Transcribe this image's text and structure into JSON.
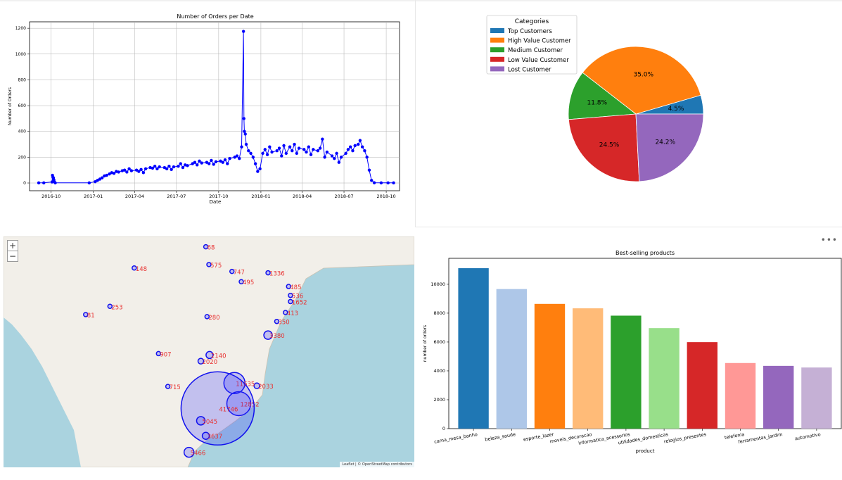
{
  "chart_data": [
    {
      "type": "line",
      "title": "Number of Orders per Date",
      "xlabel": "Date",
      "ylabel": "Number of Orders",
      "ylim": [
        -60,
        1250
      ],
      "xlim": [
        "2016-08-15",
        "2018-10-30"
      ],
      "grid": true,
      "color": "#0000ff",
      "y_ticks": [
        0,
        200,
        400,
        600,
        800,
        1000,
        1200
      ],
      "x_ticks": [
        "2016-10",
        "2017-01",
        "2017-04",
        "2017-07",
        "2017-10",
        "2018-01",
        "2018-04",
        "2018-07",
        "2018-10"
      ],
      "x_tick_dates": [
        "2016-10-01",
        "2017-01-01",
        "2017-04-01",
        "2017-07-01",
        "2017-10-01",
        "2018-01-01",
        "2018-04-01",
        "2018-07-01",
        "2018-10-01"
      ],
      "points": [
        [
          "2016-09-04",
          1
        ],
        [
          "2016-09-15",
          1
        ],
        [
          "2016-10-03",
          8
        ],
        [
          "2016-10-04",
          60
        ],
        [
          "2016-10-05",
          45
        ],
        [
          "2016-10-06",
          40
        ],
        [
          "2016-10-07",
          25
        ],
        [
          "2016-10-08",
          10
        ],
        [
          "2016-10-10",
          1
        ],
        [
          "2016-12-23",
          1
        ],
        [
          "2017-01-05",
          10
        ],
        [
          "2017-01-10",
          20
        ],
        [
          "2017-01-15",
          30
        ],
        [
          "2017-01-20",
          40
        ],
        [
          "2017-01-25",
          55
        ],
        [
          "2017-01-30",
          60
        ],
        [
          "2017-02-05",
          70
        ],
        [
          "2017-02-10",
          80
        ],
        [
          "2017-02-15",
          75
        ],
        [
          "2017-02-20",
          90
        ],
        [
          "2017-02-25",
          85
        ],
        [
          "2017-03-05",
          95
        ],
        [
          "2017-03-10",
          100
        ],
        [
          "2017-03-15",
          85
        ],
        [
          "2017-03-20",
          110
        ],
        [
          "2017-03-25",
          95
        ],
        [
          "2017-04-05",
          100
        ],
        [
          "2017-04-10",
          90
        ],
        [
          "2017-04-15",
          105
        ],
        [
          "2017-04-20",
          80
        ],
        [
          "2017-04-25",
          110
        ],
        [
          "2017-05-05",
          120
        ],
        [
          "2017-05-10",
          115
        ],
        [
          "2017-05-15",
          130
        ],
        [
          "2017-05-20",
          110
        ],
        [
          "2017-05-25",
          125
        ],
        [
          "2017-06-05",
          120
        ],
        [
          "2017-06-10",
          110
        ],
        [
          "2017-06-15",
          130
        ],
        [
          "2017-06-20",
          105
        ],
        [
          "2017-06-25",
          125
        ],
        [
          "2017-07-05",
          130
        ],
        [
          "2017-07-10",
          150
        ],
        [
          "2017-07-15",
          120
        ],
        [
          "2017-07-20",
          140
        ],
        [
          "2017-07-25",
          135
        ],
        [
          "2017-08-05",
          150
        ],
        [
          "2017-08-10",
          160
        ],
        [
          "2017-08-15",
          140
        ],
        [
          "2017-08-20",
          170
        ],
        [
          "2017-08-25",
          155
        ],
        [
          "2017-09-05",
          160
        ],
        [
          "2017-09-10",
          150
        ],
        [
          "2017-09-15",
          175
        ],
        [
          "2017-09-20",
          145
        ],
        [
          "2017-09-25",
          165
        ],
        [
          "2017-10-05",
          170
        ],
        [
          "2017-10-10",
          160
        ],
        [
          "2017-10-15",
          180
        ],
        [
          "2017-10-20",
          150
        ],
        [
          "2017-10-25",
          190
        ],
        [
          "2017-11-05",
          200
        ],
        [
          "2017-11-10",
          210
        ],
        [
          "2017-11-15",
          190
        ],
        [
          "2017-11-20",
          280
        ],
        [
          "2017-11-24",
          1176
        ],
        [
          "2017-11-25",
          500
        ],
        [
          "2017-11-26",
          400
        ],
        [
          "2017-11-28",
          380
        ],
        [
          "2017-11-30",
          300
        ],
        [
          "2017-12-05",
          250
        ],
        [
          "2017-12-10",
          230
        ],
        [
          "2017-12-15",
          200
        ],
        [
          "2017-12-20",
          150
        ],
        [
          "2017-12-25",
          90
        ],
        [
          "2017-12-30",
          110
        ],
        [
          "2018-01-05",
          230
        ],
        [
          "2018-01-10",
          260
        ],
        [
          "2018-01-15",
          220
        ],
        [
          "2018-01-20",
          280
        ],
        [
          "2018-01-25",
          240
        ],
        [
          "2018-02-05",
          250
        ],
        [
          "2018-02-10",
          270
        ],
        [
          "2018-02-15",
          210
        ],
        [
          "2018-02-20",
          290
        ],
        [
          "2018-02-25",
          230
        ],
        [
          "2018-03-05",
          280
        ],
        [
          "2018-03-10",
          250
        ],
        [
          "2018-03-15",
          300
        ],
        [
          "2018-03-20",
          230
        ],
        [
          "2018-03-25",
          270
        ],
        [
          "2018-04-05",
          260
        ],
        [
          "2018-04-10",
          240
        ],
        [
          "2018-04-15",
          280
        ],
        [
          "2018-04-20",
          220
        ],
        [
          "2018-04-25",
          260
        ],
        [
          "2018-05-05",
          250
        ],
        [
          "2018-05-10",
          270
        ],
        [
          "2018-05-15",
          340
        ],
        [
          "2018-05-20",
          200
        ],
        [
          "2018-05-25",
          240
        ],
        [
          "2018-06-05",
          210
        ],
        [
          "2018-06-10",
          190
        ],
        [
          "2018-06-15",
          230
        ],
        [
          "2018-06-20",
          160
        ],
        [
          "2018-06-25",
          200
        ],
        [
          "2018-07-05",
          230
        ],
        [
          "2018-07-10",
          260
        ],
        [
          "2018-07-15",
          280
        ],
        [
          "2018-07-20",
          250
        ],
        [
          "2018-07-25",
          290
        ],
        [
          "2018-08-01",
          300
        ],
        [
          "2018-08-05",
          330
        ],
        [
          "2018-08-10",
          280
        ],
        [
          "2018-08-15",
          250
        ],
        [
          "2018-08-20",
          200
        ],
        [
          "2018-08-25",
          100
        ],
        [
          "2018-08-30",
          20
        ],
        [
          "2018-09-05",
          2
        ],
        [
          "2018-09-20",
          1
        ],
        [
          "2018-10-05",
          1
        ],
        [
          "2018-10-17",
          1
        ]
      ]
    },
    {
      "type": "pie",
      "legend_title": "Categories",
      "legend_position": "top-left",
      "slices": [
        {
          "label": "Top Customers",
          "value": 4.5,
          "text": "4.5%",
          "color": "#1f77b4"
        },
        {
          "label": "High Value Customer",
          "value": 35.0,
          "text": "35.0%",
          "color": "#ff7f0e"
        },
        {
          "label": "Medium Customer",
          "value": 11.8,
          "text": "11.8%",
          "color": "#2ca02c"
        },
        {
          "label": "Low Value Customer",
          "value": 24.5,
          "text": "24.5%",
          "color": "#d62728"
        },
        {
          "label": "Lost Customer",
          "value": 24.2,
          "text": "24.2%",
          "color": "#9467bd"
        }
      ]
    },
    {
      "type": "bar",
      "title": "Best-selling products",
      "xlabel": "product",
      "ylabel": "number of orders",
      "ylim": [
        0,
        11800
      ],
      "y_ticks": [
        0,
        2000,
        4000,
        6000,
        8000,
        10000
      ],
      "categories": [
        "cama_mesa_banho",
        "beleza_saude",
        "esporte_lazer",
        "moveis_decoracao",
        "informatica_acessorios",
        "utilidades_domesticas",
        "relogios_presentes",
        "telefonia",
        "ferramentas_jardim",
        "automotivo"
      ],
      "values": [
        11115,
        9670,
        8641,
        8334,
        7827,
        6964,
        5991,
        4545,
        4347,
        4235
      ],
      "colors": [
        "#1f77b4",
        "#aec7e8",
        "#ff7f0e",
        "#ffbb78",
        "#2ca02c",
        "#98df8a",
        "#d62728",
        "#ff9896",
        "#9467bd",
        "#c5b0d5"
      ]
    }
  ],
  "map": {
    "zoom_in_label": "+",
    "zoom_out_label": "−",
    "attribution": "Leaflet | © OpenStreetMap contributors",
    "markers": [
      {
        "label": "68",
        "lon": -48.5,
        "lat": 0.0,
        "r": 3
      },
      {
        "label": "148",
        "lon": -60.0,
        "lat": -3.1,
        "r": 3
      },
      {
        "label": "575",
        "lon": -48.0,
        "lat": -2.6,
        "r": 3
      },
      {
        "label": "747",
        "lon": -44.3,
        "lat": -3.6,
        "r": 3
      },
      {
        "label": "1336",
        "lon": -38.5,
        "lat": -3.8,
        "r": 3
      },
      {
        "label": "495",
        "lon": -42.8,
        "lat": -5.1,
        "r": 3
      },
      {
        "label": "485",
        "lon": -35.2,
        "lat": -5.8,
        "r": 3
      },
      {
        "label": "536",
        "lon": -34.9,
        "lat": -7.1,
        "r": 3
      },
      {
        "label": "1652",
        "lon": -34.9,
        "lat": -8.0,
        "r": 3
      },
      {
        "label": "413",
        "lon": -35.7,
        "lat": -9.6,
        "r": 3
      },
      {
        "label": "350",
        "lon": -37.1,
        "lat": -10.9,
        "r": 3
      },
      {
        "label": "3380",
        "lon": -38.5,
        "lat": -12.9,
        "r": 6
      },
      {
        "label": "81",
        "lon": -67.8,
        "lat": -9.9,
        "r": 3
      },
      {
        "label": "253",
        "lon": -63.9,
        "lat": -8.7,
        "r": 3
      },
      {
        "label": "280",
        "lon": -48.3,
        "lat": -10.2,
        "r": 3
      },
      {
        "label": "907",
        "lon": -56.1,
        "lat": -15.6,
        "r": 3
      },
      {
        "label": "2140",
        "lon": -47.9,
        "lat": -15.8,
        "r": 5
      },
      {
        "label": "2020",
        "lon": -49.3,
        "lat": -16.7,
        "r": 4
      },
      {
        "label": "715",
        "lon": -54.6,
        "lat": -20.4,
        "r": 3
      },
      {
        "label": "2033",
        "lon": -40.3,
        "lat": -20.3,
        "r": 4
      },
      {
        "label": "11635",
        "lon": -43.9,
        "lat": -19.9,
        "r": 15
      },
      {
        "label": "12852",
        "lon": -43.2,
        "lat": -22.9,
        "r": 17
      },
      {
        "label": "41746",
        "lon": -46.6,
        "lat": -23.6,
        "r": 52
      },
      {
        "label": "5045",
        "lon": -49.3,
        "lat": -25.4,
        "r": 6
      },
      {
        "label": "3637",
        "lon": -48.5,
        "lat": -27.6,
        "r": 5
      },
      {
        "label": "5466",
        "lon": -51.2,
        "lat": -30.0,
        "r": 7
      }
    ]
  }
}
